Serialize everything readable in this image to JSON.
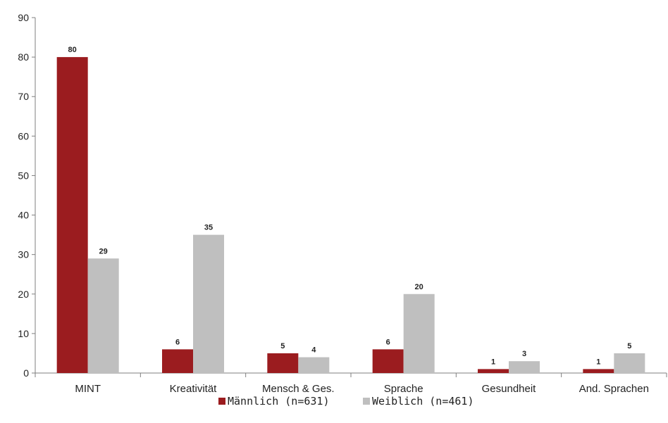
{
  "chart_data": {
    "type": "bar",
    "categories": [
      "MINT",
      "Kreativität",
      "Mensch & Ges.",
      "Sprache",
      "Gesundheit",
      "And. Sprachen"
    ],
    "series": [
      {
        "name": "Männlich (n=631)",
        "values": [
          80,
          6,
          5,
          6,
          1,
          1
        ],
        "labels": [
          "80",
          "6",
          "5",
          "6",
          "1",
          "1"
        ],
        "color": "#9b1c1f"
      },
      {
        "name": "Weiblich (n=461)",
        "values": [
          29,
          35,
          4,
          20,
          3,
          5
        ],
        "labels": [
          "29",
          "35",
          "4",
          "20",
          "3",
          "5"
        ],
        "color": "#bfbfbf"
      }
    ],
    "ylim": [
      0,
      90
    ],
    "yticks": [
      0,
      10,
      20,
      30,
      40,
      50,
      60,
      70,
      80,
      90
    ],
    "grid": false,
    "legend_position": "bottom-center",
    "title": "",
    "xlabel": "",
    "ylabel": ""
  }
}
